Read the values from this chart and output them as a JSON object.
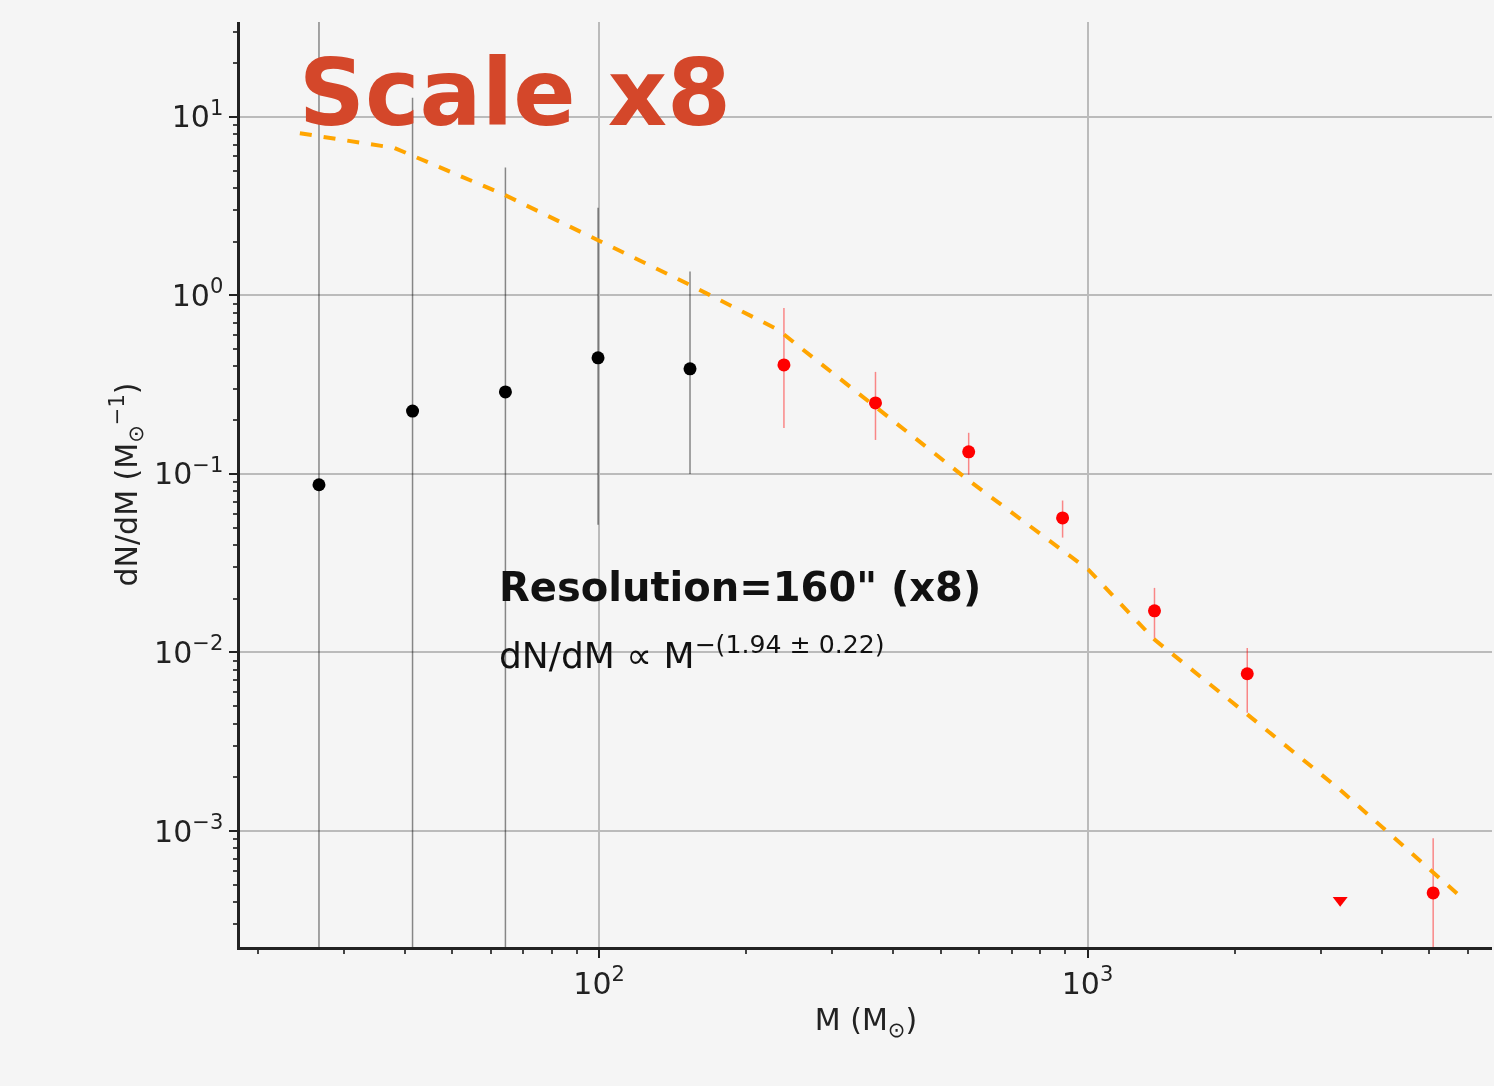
{
  "chart_data": {
    "type": "scatter",
    "title": "Scale x8",
    "xlabel": "M (M$_{⊙}$)",
    "ylabel": "dN/dM (M$_{⊙}$$^{−1}$)",
    "annotations": [
      "Resolution=160\" (x8)",
      "dN/dM ∝ M$^{−(1.94 ± 0.22)}$"
    ],
    "log": "xy",
    "grid": true,
    "marker": "circle",
    "xlim": [
      18.4,
      6730
    ],
    "ylim": [
      0.000224,
      34
    ],
    "xticks": [
      {
        "value": 100,
        "label": "10$^{2}$"
      },
      {
        "value": 1000,
        "label": "10$^{3}$"
      }
    ],
    "yticks": [
      {
        "value": 0.001,
        "label": "10$^{−3}$"
      },
      {
        "value": 0.01,
        "label": "10$^{−2}$"
      },
      {
        "value": 0.1,
        "label": "10$^{−1}$"
      },
      {
        "value": 1,
        "label": "10$^{0}$"
      },
      {
        "value": 10,
        "label": "10$^{1}$"
      }
    ],
    "series": [
      {
        "color": "#000000",
        "x": [
          26.7,
          41.5,
          64.3,
          99.5,
          153.5
        ],
        "values": [
          0.087,
          0.225,
          0.288,
          0.447,
          0.388
        ],
        "errors": [
          [
            0.000224,
            34
          ],
          [
            0.000224,
            12.8
          ],
          [
            0.000224,
            5.2
          ],
          [
            0.052,
            3.1
          ],
          [
            0.1,
            1.36
          ]
        ]
      },
      {
        "color": "#ff0000",
        "x": [
          239,
          368,
          571,
          889,
          1371,
          2123,
          5100
        ],
        "values": [
          0.408,
          0.25,
          0.133,
          0.0567,
          0.0171,
          0.0076,
          0.00045
        ],
        "errors": [
          [
            0.181,
            0.85
          ],
          [
            0.155,
            0.373
          ],
          [
            0.099,
            0.17
          ],
          [
            0.044,
            0.071
          ],
          [
            0.0117,
            0.023
          ],
          [
            0.0046,
            0.0106
          ],
          [
            0.000224,
            0.00091
          ]
        ]
      },
      {
        "color": "#ff0000",
        "marker": "triangle",
        "x": [
          3290
        ],
        "values": [
          0.00041
        ]
      },
      {
        "type": "line",
        "color": "#ffa500",
        "line_style": "dashed",
        "marker": "none",
        "x": [
          24.4,
          38.1,
          64,
          99,
          153,
          233,
          262,
          571,
          1005,
          1371,
          2123,
          3290,
          5740
        ],
        "values": [
          8.1,
          6.7,
          3.66,
          2.05,
          1.15,
          0.64,
          0.495,
          0.092,
          0.029,
          0.0118,
          0.0045,
          0.0017,
          0.00044
        ]
      }
    ]
  }
}
